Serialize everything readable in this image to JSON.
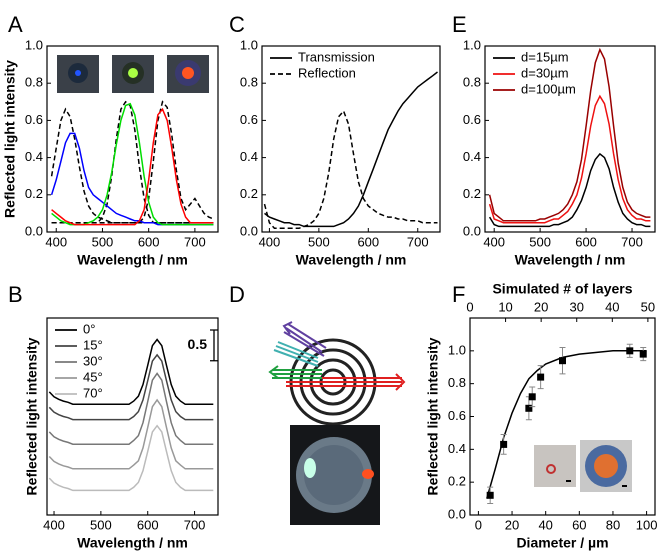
{
  "chart_data": [
    {
      "type": "line",
      "panel_label": "A",
      "xlabel": "Wavelength / nm",
      "ylabel": "Reflected light intensity",
      "xlim": [
        380,
        750
      ],
      "ylim": [
        0,
        1.0
      ],
      "xticks": [
        400,
        500,
        600,
        700
      ],
      "yticks": [
        {
          "value": 0,
          "label": "0.0"
        },
        {
          "value": 0.2,
          "label": "0.2"
        },
        {
          "value": 0.4,
          "label": "0.4"
        },
        {
          "value": 0.6,
          "label": "0.6"
        },
        {
          "value": 0.8,
          "label": "0.8"
        },
        {
          "value": 1.0,
          "label": "1.0"
        }
      ],
      "x": [
        390,
        400,
        410,
        420,
        430,
        440,
        450,
        460,
        470,
        480,
        490,
        500,
        510,
        520,
        530,
        540,
        550,
        560,
        570,
        580,
        590,
        600,
        610,
        620,
        630,
        640,
        650,
        660,
        670,
        680,
        690,
        700,
        710,
        720,
        730,
        740
      ],
      "series": [
        {
          "color": "#000000",
          "dash": true,
          "values": [
            0.3,
            0.45,
            0.6,
            0.66,
            0.62,
            0.5,
            0.35,
            0.22,
            0.14,
            0.1,
            0.08,
            0.07,
            0.06,
            0.05,
            0.05,
            0.05,
            0.05,
            0.05,
            0.05,
            0.05,
            0.05,
            0.05,
            0.05,
            0.05,
            0.05,
            0.05,
            0.05,
            0.05,
            0.05,
            0.05,
            0.05,
            0.05,
            0.05,
            0.05,
            0.05,
            0.05
          ]
        },
        {
          "color": "#000000",
          "dash": true,
          "values": [
            0.05,
            0.05,
            0.05,
            0.05,
            0.05,
            0.05,
            0.05,
            0.05,
            0.05,
            0.05,
            0.05,
            0.08,
            0.15,
            0.3,
            0.5,
            0.66,
            0.7,
            0.68,
            0.55,
            0.35,
            0.18,
            0.09,
            0.05,
            0.05,
            0.05,
            0.05,
            0.05,
            0.05,
            0.05,
            0.05,
            0.05,
            0.05,
            0.05,
            0.05,
            0.05,
            0.05
          ]
        },
        {
          "color": "#000000",
          "dash": true,
          "values": [
            0.05,
            0.05,
            0.05,
            0.05,
            0.05,
            0.05,
            0.05,
            0.05,
            0.05,
            0.05,
            0.05,
            0.05,
            0.05,
            0.05,
            0.05,
            0.05,
            0.05,
            0.05,
            0.05,
            0.05,
            0.08,
            0.18,
            0.38,
            0.6,
            0.7,
            0.67,
            0.52,
            0.33,
            0.18,
            0.12,
            0.15,
            0.18,
            0.14,
            0.1,
            0.08,
            0.07
          ]
        },
        {
          "color": "#0000ff",
          "values": [
            0.2,
            0.28,
            0.38,
            0.48,
            0.53,
            0.53,
            0.45,
            0.33,
            0.24,
            0.2,
            0.18,
            0.16,
            0.14,
            0.12,
            0.1,
            0.09,
            0.08,
            0.07,
            0.06,
            0.06,
            0.05,
            0.05,
            0.05,
            0.04,
            0.04,
            0.04,
            0.04,
            0.04,
            0.04,
            0.04,
            0.04,
            0.04,
            0.04,
            0.04,
            0.04,
            0.04
          ]
        },
        {
          "color": "#00dd00",
          "values": [
            0.1,
            0.08,
            0.06,
            0.05,
            0.04,
            0.04,
            0.04,
            0.04,
            0.05,
            0.06,
            0.08,
            0.12,
            0.2,
            0.32,
            0.47,
            0.6,
            0.68,
            0.69,
            0.63,
            0.48,
            0.3,
            0.16,
            0.08,
            0.05,
            0.04,
            0.04,
            0.04,
            0.04,
            0.04,
            0.04,
            0.04,
            0.04,
            0.04,
            0.04,
            0.04,
            0.04
          ]
        },
        {
          "color": "#ff0000",
          "values": [
            0.12,
            0.1,
            0.08,
            0.06,
            0.05,
            0.04,
            0.04,
            0.04,
            0.04,
            0.04,
            0.04,
            0.04,
            0.04,
            0.04,
            0.04,
            0.04,
            0.04,
            0.04,
            0.04,
            0.06,
            0.12,
            0.28,
            0.48,
            0.63,
            0.66,
            0.6,
            0.45,
            0.28,
            0.15,
            0.08,
            0.05,
            0.05,
            0.05,
            0.05,
            0.05,
            0.05
          ]
        }
      ]
    },
    {
      "type": "line",
      "panel_label": "C",
      "xlabel": "Wavelength / nm",
      "legend": "upper left",
      "xlim": [
        385,
        745
      ],
      "ylim": [
        0,
        1.0
      ],
      "xticks": [
        400,
        500,
        600,
        700
      ],
      "yticks": [
        {
          "value": 0,
          "label": "0.0"
        },
        {
          "value": 0.2,
          "label": "0.2"
        },
        {
          "value": 0.4,
          "label": "0.4"
        },
        {
          "value": 0.6,
          "label": "0.6"
        },
        {
          "value": 0.8,
          "label": "0.8"
        },
        {
          "value": 1.0,
          "label": "1.0"
        }
      ],
      "x": [
        390,
        400,
        410,
        420,
        430,
        440,
        450,
        460,
        470,
        480,
        490,
        500,
        510,
        520,
        530,
        540,
        550,
        560,
        570,
        580,
        590,
        600,
        610,
        620,
        630,
        640,
        650,
        660,
        670,
        680,
        690,
        700,
        710,
        720,
        730,
        740
      ],
      "series": [
        {
          "name": "Transmission",
          "color": "#000000",
          "values": [
            0.1,
            0.08,
            0.07,
            0.06,
            0.05,
            0.05,
            0.04,
            0.04,
            0.03,
            0.03,
            0.03,
            0.03,
            0.03,
            0.03,
            0.03,
            0.04,
            0.05,
            0.07,
            0.1,
            0.14,
            0.2,
            0.27,
            0.34,
            0.41,
            0.48,
            0.55,
            0.6,
            0.65,
            0.69,
            0.72,
            0.75,
            0.78,
            0.8,
            0.82,
            0.84,
            0.86
          ]
        },
        {
          "name": "Reflection",
          "color": "#000000",
          "dash": true,
          "values": [
            0.15,
            0.05,
            0.02,
            0.02,
            0.02,
            0.02,
            0.02,
            0.02,
            0.03,
            0.04,
            0.06,
            0.1,
            0.18,
            0.32,
            0.5,
            0.62,
            0.65,
            0.58,
            0.42,
            0.27,
            0.18,
            0.14,
            0.12,
            0.1,
            0.09,
            0.08,
            0.08,
            0.07,
            0.07,
            0.06,
            0.06,
            0.06,
            0.05,
            0.05,
            0.05,
            0.05
          ]
        }
      ]
    },
    {
      "type": "line",
      "panel_label": "E",
      "xlabel": "Wavelength / nm",
      "legend": "upper left",
      "xlim": [
        380,
        750
      ],
      "ylim": [
        0,
        1.0
      ],
      "xticks": [
        400,
        500,
        600,
        700
      ],
      "yticks": [
        {
          "value": 0,
          "label": "0.0"
        },
        {
          "value": 0.2,
          "label": "0.2"
        },
        {
          "value": 0.4,
          "label": "0.4"
        },
        {
          "value": 0.6,
          "label": "0.6"
        },
        {
          "value": 0.8,
          "label": "0.8"
        },
        {
          "value": 1.0,
          "label": "1.0"
        }
      ],
      "x": [
        390,
        400,
        410,
        420,
        430,
        440,
        450,
        460,
        470,
        480,
        490,
        500,
        510,
        520,
        530,
        540,
        550,
        560,
        570,
        580,
        590,
        600,
        610,
        620,
        630,
        640,
        650,
        660,
        670,
        680,
        690,
        700,
        710,
        720,
        730,
        740
      ],
      "series": [
        {
          "name": "d=15µm",
          "color": "#000000",
          "values": [
            0.08,
            0.04,
            0.03,
            0.03,
            0.03,
            0.03,
            0.03,
            0.03,
            0.03,
            0.03,
            0.03,
            0.03,
            0.03,
            0.03,
            0.04,
            0.04,
            0.05,
            0.06,
            0.08,
            0.12,
            0.17,
            0.24,
            0.33,
            0.39,
            0.42,
            0.4,
            0.34,
            0.24,
            0.16,
            0.1,
            0.07,
            0.05,
            0.04,
            0.04,
            0.03,
            0.03
          ]
        },
        {
          "name": "d=30µm",
          "color": "#ee1111",
          "values": [
            0.15,
            0.07,
            0.06,
            0.05,
            0.05,
            0.05,
            0.05,
            0.05,
            0.05,
            0.05,
            0.05,
            0.05,
            0.05,
            0.06,
            0.07,
            0.07,
            0.09,
            0.11,
            0.15,
            0.2,
            0.29,
            0.42,
            0.57,
            0.68,
            0.73,
            0.69,
            0.58,
            0.42,
            0.28,
            0.18,
            0.12,
            0.09,
            0.07,
            0.07,
            0.06,
            0.06
          ]
        },
        {
          "name": "d=100µm",
          "color": "#990000",
          "values": [
            0.2,
            0.1,
            0.08,
            0.06,
            0.06,
            0.06,
            0.06,
            0.06,
            0.06,
            0.06,
            0.06,
            0.07,
            0.07,
            0.08,
            0.09,
            0.1,
            0.12,
            0.15,
            0.2,
            0.27,
            0.39,
            0.57,
            0.76,
            0.91,
            0.98,
            0.93,
            0.78,
            0.57,
            0.37,
            0.24,
            0.16,
            0.12,
            0.1,
            0.09,
            0.08,
            0.08
          ]
        }
      ]
    },
    {
      "type": "line",
      "panel_label": "B",
      "xlabel": "Wavelength / nm",
      "ylabel": "Reflected light intensity",
      "legend": "upper left",
      "xlim": [
        385,
        750
      ],
      "ylim": [
        0,
        3.2
      ],
      "xticks": [
        400,
        500,
        600,
        700
      ],
      "scale_bar": 0.5,
      "x": [
        390,
        400,
        410,
        420,
        430,
        440,
        450,
        460,
        470,
        480,
        490,
        500,
        510,
        520,
        530,
        540,
        550,
        560,
        570,
        580,
        590,
        600,
        610,
        620,
        630,
        640,
        650,
        660,
        670,
        680,
        690,
        700,
        710,
        720,
        730,
        740
      ],
      "series": [
        {
          "name": "0°",
          "color": "#000000",
          "values": [
            2.0,
            1.92,
            1.88,
            1.85,
            1.83,
            1.8,
            1.8,
            1.8,
            1.8,
            1.8,
            1.8,
            1.8,
            1.8,
            1.8,
            1.8,
            1.8,
            1.8,
            1.8,
            1.85,
            1.93,
            2.12,
            2.43,
            2.75,
            2.85,
            2.75,
            2.43,
            2.12,
            1.93,
            1.85,
            1.8,
            1.8,
            1.8,
            1.8,
            1.8,
            1.8,
            1.8
          ]
        },
        {
          "name": "15°",
          "color": "#444444",
          "values": [
            1.75,
            1.67,
            1.63,
            1.6,
            1.58,
            1.55,
            1.55,
            1.55,
            1.55,
            1.55,
            1.55,
            1.55,
            1.55,
            1.55,
            1.55,
            1.55,
            1.55,
            1.55,
            1.6,
            1.68,
            1.87,
            2.18,
            2.5,
            2.6,
            2.5,
            2.18,
            1.87,
            1.68,
            1.6,
            1.55,
            1.55,
            1.55,
            1.55,
            1.55,
            1.55,
            1.55
          ]
        },
        {
          "name": "30°",
          "color": "#777777",
          "values": [
            1.35,
            1.27,
            1.23,
            1.2,
            1.18,
            1.15,
            1.15,
            1.15,
            1.15,
            1.15,
            1.15,
            1.15,
            1.15,
            1.15,
            1.15,
            1.15,
            1.15,
            1.15,
            1.21,
            1.29,
            1.5,
            1.84,
            2.19,
            2.3,
            2.19,
            1.84,
            1.5,
            1.29,
            1.21,
            1.15,
            1.15,
            1.15,
            1.15,
            1.15,
            1.15,
            1.15
          ]
        },
        {
          "name": "45°",
          "color": "#999999",
          "values": [
            0.95,
            0.87,
            0.83,
            0.8,
            0.78,
            0.75,
            0.75,
            0.75,
            0.75,
            0.75,
            0.75,
            0.75,
            0.75,
            0.75,
            0.75,
            0.75,
            0.75,
            0.75,
            0.81,
            0.88,
            1.09,
            1.42,
            1.76,
            1.87,
            1.76,
            1.42,
            1.09,
            0.88,
            0.81,
            0.75,
            0.75,
            0.75,
            0.75,
            0.75,
            0.75,
            0.75
          ]
        },
        {
          "name": "70°",
          "color": "#bbbbbb",
          "values": [
            0.6,
            0.52,
            0.48,
            0.45,
            0.43,
            0.4,
            0.4,
            0.4,
            0.4,
            0.4,
            0.4,
            0.4,
            0.4,
            0.4,
            0.4,
            0.4,
            0.4,
            0.4,
            0.45,
            0.53,
            0.72,
            1.03,
            1.35,
            1.45,
            1.35,
            1.03,
            0.72,
            0.53,
            0.45,
            0.4,
            0.4,
            0.4,
            0.4,
            0.4,
            0.4,
            0.4
          ]
        }
      ]
    },
    {
      "type": "diagram",
      "panel_label": "D"
    },
    {
      "type": "scatter",
      "panel_label": "F",
      "xlabel": "Diameter / µm",
      "ylabel": "Reflected light intensity",
      "x2label": "Simulated # of layers",
      "xlim": [
        -5,
        105
      ],
      "ylim": [
        0,
        1.2
      ],
      "x2lim": [
        0,
        52
      ],
      "xticks": [
        0,
        20,
        40,
        60,
        80,
        100
      ],
      "x2ticks": [
        0,
        10,
        20,
        30,
        40,
        50
      ],
      "yticks": [
        {
          "value": 0,
          "label": "0.0"
        },
        {
          "value": 0.2,
          "label": "0.2"
        },
        {
          "value": 0.4,
          "label": "0.4"
        },
        {
          "value": 0.6,
          "label": "0.6"
        },
        {
          "value": 0.8,
          "label": "0.8"
        },
        {
          "value": 1.0,
          "label": "1.0"
        }
      ],
      "series": [
        {
          "color": "#000000",
          "line": true,
          "x": [
            5,
            10,
            15,
            20,
            25,
            30,
            35,
            40,
            50,
            60,
            80,
            100
          ],
          "values": [
            0.1,
            0.28,
            0.47,
            0.62,
            0.74,
            0.83,
            0.88,
            0.92,
            0.96,
            0.98,
            1.0,
            1.0
          ]
        },
        {
          "color": "#000000",
          "marker": true,
          "x": [
            7,
            15,
            30,
            32,
            37,
            50,
            90,
            98
          ],
          "values": [
            0.12,
            0.43,
            0.65,
            0.72,
            0.84,
            0.94,
            1.0,
            0.98
          ],
          "errors": [
            0.05,
            0.06,
            0.07,
            0.06,
            0.07,
            0.08,
            0.04,
            0.04
          ]
        }
      ]
    }
  ]
}
